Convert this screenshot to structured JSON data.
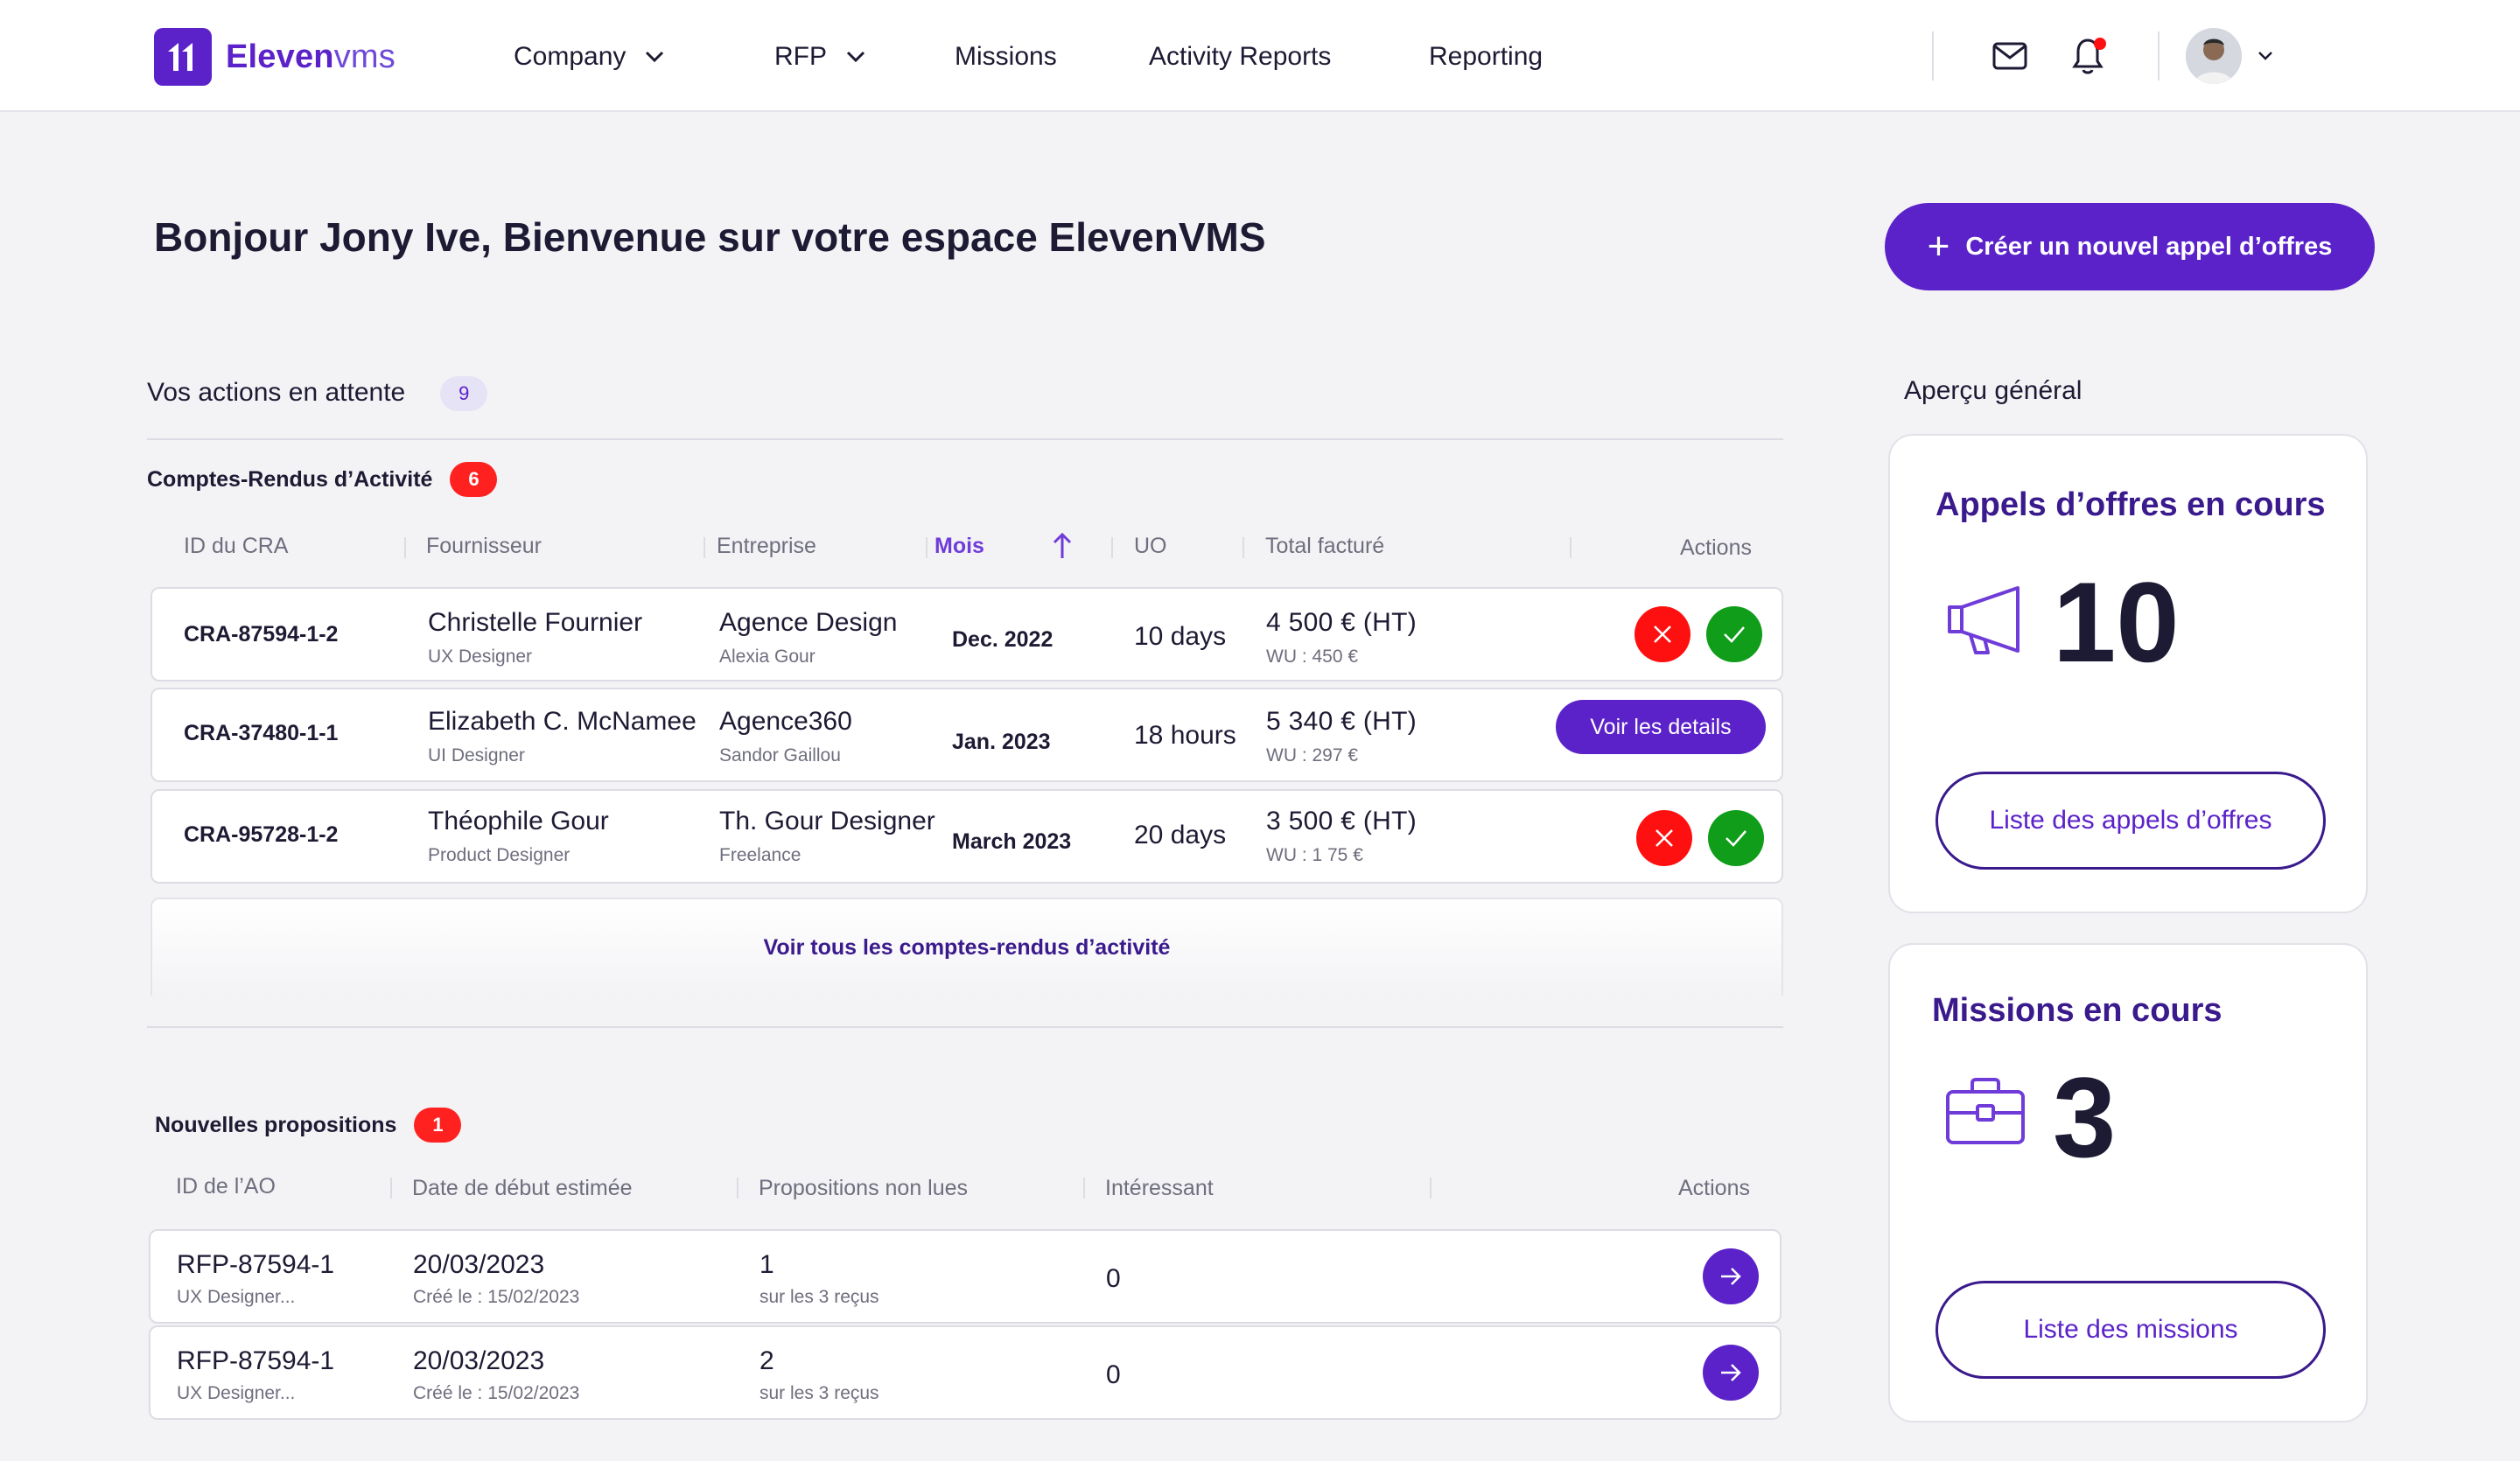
{
  "brand": {
    "name_bold": "Eleven",
    "name_light": "vms",
    "accent": "#5b22c9"
  },
  "nav": {
    "items": [
      {
        "label": "Company",
        "has_dropdown": true
      },
      {
        "label": "RFP",
        "has_dropdown": true
      },
      {
        "label": "Missions",
        "has_dropdown": false
      },
      {
        "label": "Activity Reports",
        "has_dropdown": false
      },
      {
        "label": "Reporting",
        "has_dropdown": false
      }
    ],
    "icons": [
      "mail-icon",
      "bell-icon",
      "avatar",
      "chevron-down-icon"
    ]
  },
  "header": {
    "greeting": "Bonjour Jony Ive, Bienvenue sur votre espace ElevenVMS",
    "cta_label": "Créer un nouvel appel d’offres"
  },
  "pending": {
    "title": "Vos actions en attente",
    "count": "9"
  },
  "cra": {
    "title": "Comptes-Rendus d’Activité",
    "count": "6",
    "columns": [
      "ID du CRA",
      "Fournisseur",
      "Entreprise",
      "Mois",
      "UO",
      "Total facturé",
      "Actions"
    ],
    "rows": [
      {
        "id": "CRA-87594-1-2",
        "supplier": "Christelle Fournier",
        "role": "UX Designer",
        "company": "Agence Design",
        "contact": "Alexia Gour",
        "month": "Dec. 2022",
        "uo": "10 days",
        "amount": "4 500 €  (HT)",
        "wu": "WU : 450 €",
        "action": "approve-reject"
      },
      {
        "id": "CRA-37480-1-1",
        "supplier": "Elizabeth C. McNamee",
        "role": "UI Designer",
        "company": "Agence360",
        "contact": "Sandor Gaillou",
        "month": "Jan. 2023",
        "uo": "18 hours",
        "amount": "5 340 €  (HT)",
        "wu": "WU : 297 €",
        "action": "details",
        "action_label": "Voir les details"
      },
      {
        "id": "CRA-95728-1-2",
        "supplier": "Théophile Gour",
        "role": "Product Designer",
        "company": "Th. Gour Designer",
        "contact": "Freelance",
        "month": "March 2023",
        "uo": "20 days",
        "amount": "3 500 €  (HT)",
        "wu": "WU : 1 75 €",
        "action": "approve-reject"
      }
    ],
    "see_all": "Voir tous les comptes-rendus d’activité"
  },
  "proposals": {
    "title": "Nouvelles propositions",
    "count": "1",
    "columns": [
      "ID de l’AO",
      "Date de début estimée",
      "Propositions non lues",
      "Intéressant",
      "Actions"
    ],
    "rows": [
      {
        "id": "RFP-87594-1",
        "sub": "UX Designer...",
        "date": "20/03/2023",
        "created": "Créé le : 15/02/2023",
        "unread": "1",
        "unread_sub": "sur les 3 reçus",
        "interesting": "0"
      },
      {
        "id": "RFP-87594-1",
        "sub": "UX Designer...",
        "date": "20/03/2023",
        "created": "Créé le : 15/02/2023",
        "unread": "2",
        "unread_sub": "sur les 3 reçus",
        "interesting": "0"
      }
    ]
  },
  "overview": {
    "title": "Aperçu général",
    "tenders": {
      "title": "Appels d’offres en cours",
      "value": "10",
      "button": "Liste des appels d’offres"
    },
    "missions": {
      "title": "Missions en cours",
      "value": "3",
      "button": "Liste des missions"
    }
  }
}
